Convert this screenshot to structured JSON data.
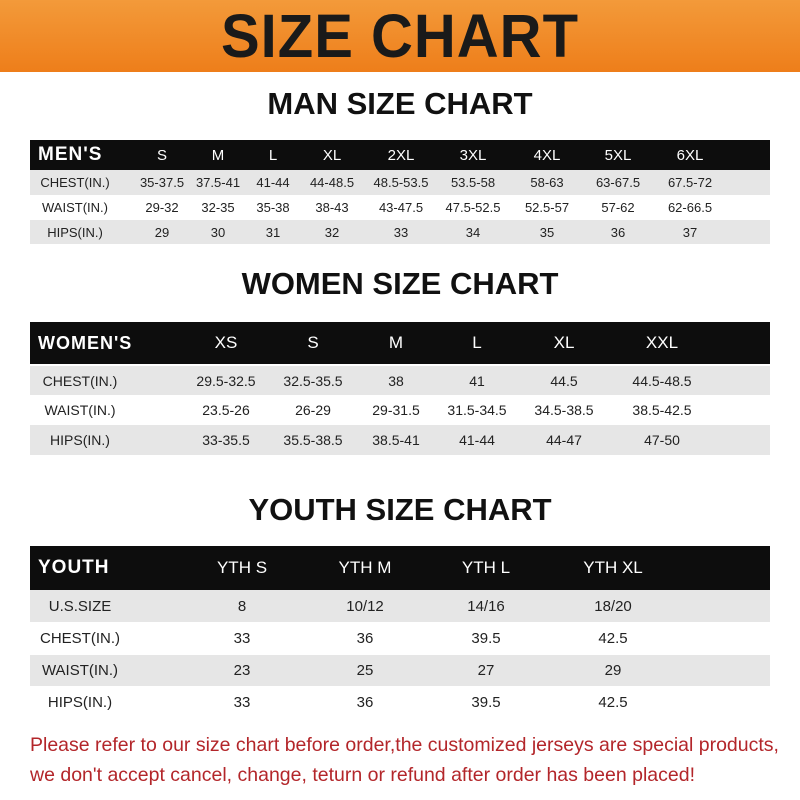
{
  "banner": "SIZE CHART",
  "tables": [
    {
      "title": "MAN SIZE CHART",
      "header": [
        "MEN'S",
        "S",
        "M",
        "L",
        "XL",
        "2XL",
        "3XL",
        "4XL",
        "5XL",
        "6XL"
      ],
      "rows": [
        [
          "CHEST(IN.)",
          "35-37.5",
          "37.5-41",
          "41-44",
          "44-48.5",
          "48.5-53.5",
          "53.5-58",
          "58-63",
          "63-67.5",
          "67.5-72"
        ],
        [
          "WAIST(IN.)",
          "29-32",
          "32-35",
          "35-38",
          "38-43",
          "43-47.5",
          "47.5-52.5",
          "52.5-57",
          "57-62",
          "62-66.5"
        ],
        [
          "HIPS(IN.)",
          "29",
          "30",
          "31",
          "32",
          "33",
          "34",
          "35",
          "36",
          "37"
        ]
      ]
    },
    {
      "title": "WOMEN SIZE CHART",
      "header": [
        "WOMEN'S",
        "XS",
        "S",
        "M",
        "L",
        "XL",
        "XXL"
      ],
      "rows": [
        [
          "CHEST(IN.)",
          "29.5-32.5",
          "32.5-35.5",
          "38",
          "41",
          "44.5",
          "44.5-48.5"
        ],
        [
          "WAIST(IN.)",
          "23.5-26",
          "26-29",
          "29-31.5",
          "31.5-34.5",
          "34.5-38.5",
          "38.5-42.5"
        ],
        [
          "HIPS(IN.)",
          "33-35.5",
          "35.5-38.5",
          "38.5-41",
          "41-44",
          "44-47",
          "47-50"
        ]
      ]
    },
    {
      "title": "YOUTH SIZE CHART",
      "header": [
        "YOUTH",
        "YTH S",
        "YTH M",
        "YTH L",
        "YTH XL"
      ],
      "rows": [
        [
          "U.S.SIZE",
          "8",
          "10/12",
          "14/16",
          "18/20"
        ],
        [
          "CHEST(IN.)",
          "33",
          "36",
          "39.5",
          "42.5"
        ],
        [
          "WAIST(IN.)",
          "23",
          "25",
          "27",
          "29"
        ],
        [
          "HIPS(IN.)",
          "33",
          "36",
          "39.5",
          "42.5"
        ]
      ]
    }
  ],
  "footer": [
    "Please refer to our size chart before order,the customized jerseys are special products,",
    "we don't accept cancel, change, teturn or refund after order has been placed!"
  ],
  "colors": {
    "banner": "#f08a24",
    "header_row": "#0d0d0d",
    "stripe": "#e6e6e6",
    "footer_text": "#b3262a"
  }
}
